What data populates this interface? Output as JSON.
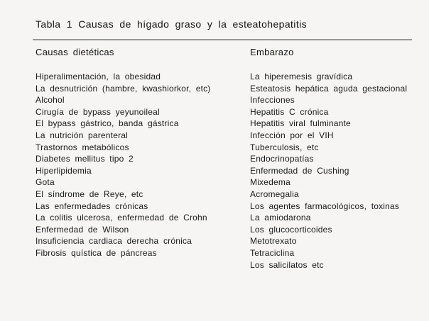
{
  "colors": {
    "page_background": "#f6f5f4",
    "text": "#161616",
    "rule": "#9b9598"
  },
  "table": {
    "title": "Tabla 1 Causas de hígado graso y la esteatohepatitis",
    "columns": [
      {
        "header": "Causas dietéticas",
        "items": [
          "Hiperalimentación, la obesidad",
          "La desnutrición (hambre, kwashiorkor, etc)",
          "Alcohol",
          "Cirugía de bypass yeyunoileal",
          "El bypass gástrico, banda gástrica",
          "La nutrición parenteral",
          "Trastornos metabólicos",
          "Diabetes mellitus tipo 2",
          "Hiperlipidemia",
          "Gota",
          "El síndrome de Reye, etc",
          "Las enfermedades crónicas",
          "La colitis ulcerosa, enfermedad de Crohn",
          "Enfermedad de Wilson",
          "Insuficiencia cardiaca derecha crónica",
          "Fibrosis quística de páncreas"
        ]
      },
      {
        "header": "Embarazo",
        "items": [
          "La hiperemesis gravídica",
          "Esteatosis hepática aguda gestacional",
          "Infecciones",
          "Hepatitis C crónica",
          "Hepatitis viral fulminante",
          "Infección por el VIH",
          "Tuberculosis, etc",
          "Endocrinopatías",
          "Enfermedad de Cushing",
          "Mixedema",
          "Acromegalia",
          "Los agentes farmacológicos, toxinas",
          "La amiodarona",
          "Los glucocorticoides",
          "Metotrexato",
          "Tetraciclina",
          "Los salicilatos etc"
        ]
      }
    ]
  }
}
